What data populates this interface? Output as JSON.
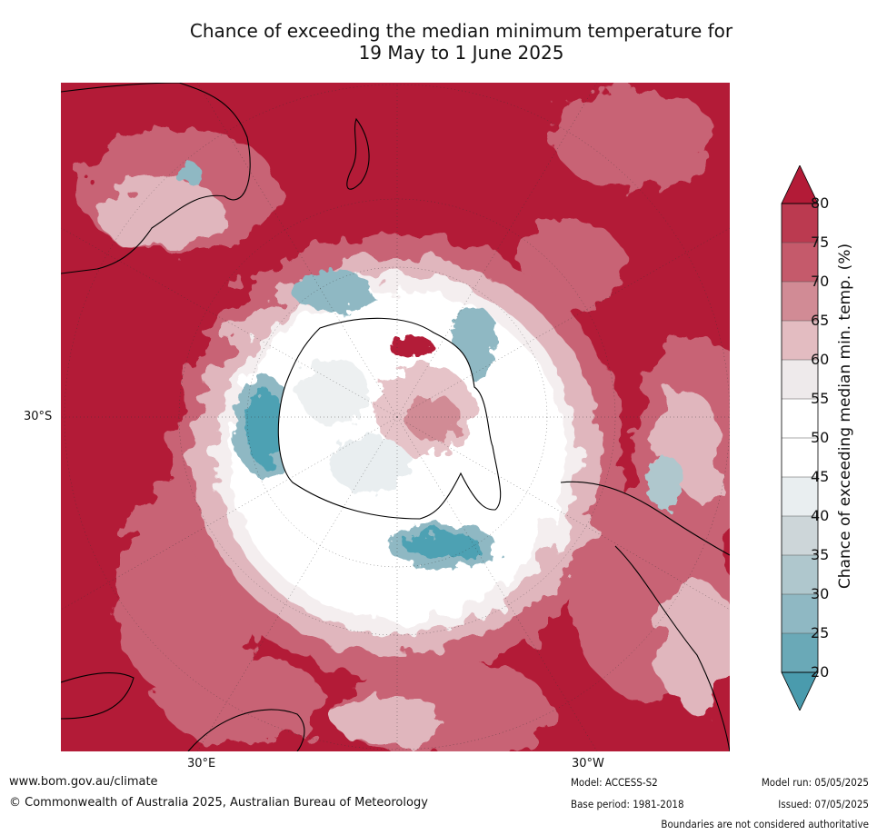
{
  "title": {
    "line1": "Chance of exceeding the median minimum temperature for",
    "line2": "19 May to 1 June 2025"
  },
  "map": {
    "projection": "south-polar-stereographic",
    "lat_labels": [
      "30°S"
    ],
    "lon_labels": [
      "30°E",
      "30°W"
    ],
    "colors": {
      "high": "#b31b37",
      "mid_high": "#c86475",
      "low_high": "#e0b6bd",
      "neutral": "#ffffff",
      "low": "#4da1b3",
      "land_outline": "#000000"
    }
  },
  "colorbar": {
    "label": "Chance of exceeding median min. temp. (%)",
    "ticks": [
      "80",
      "75",
      "70",
      "65",
      "60",
      "55",
      "50",
      "45",
      "40",
      "35",
      "30",
      "25",
      "20"
    ],
    "colors": [
      "#b31b37",
      "#bb3a50",
      "#c55a6b",
      "#d18b95",
      "#e3bcc1",
      "#eeeaeb",
      "#ffffff",
      "#ffffff",
      "#e9eef0",
      "#cdd6d9",
      "#afc7cd",
      "#8fb8c3",
      "#6aa9b7",
      "#4a9bad"
    ],
    "extend": "both"
  },
  "footer": {
    "url": "www.bom.gov.au/climate",
    "copyright": "© Commonwealth of Australia 2025, Australian Bureau of Meteorology",
    "model": "Model: ACCESS-S2",
    "base_period": "Base period: 1981-2018",
    "model_run": "Model run: 05/05/2025",
    "issued": "Issued: 07/05/2025",
    "disclaimer": "Boundaries are not considered authoritative"
  }
}
